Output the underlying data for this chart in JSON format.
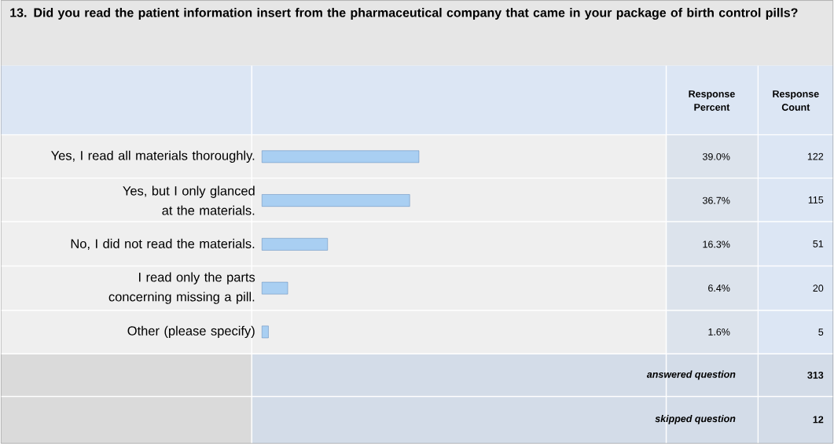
{
  "chart_data": {
    "type": "bar",
    "orientation": "horizontal",
    "title": "13. Did you read the patient information insert from the pharmaceutical company that came in your package of birth control pills?",
    "categories": [
      "Yes, I read all materials thoroughly.",
      "Yes, but I only glanced at the materials.",
      "No, I did not read the materials.",
      "I read only the parts concerning missing a pill.",
      "Other (please specify)"
    ],
    "values": [
      39.0,
      36.7,
      16.3,
      6.4,
      1.6
    ],
    "value_labels": [
      "39.0%",
      "36.7%",
      "16.3%",
      "6.4%",
      "1.6%"
    ],
    "color": "#a9cff2",
    "annotations": [
      "Response Percent",
      "Response Count",
      "122",
      "115",
      "51",
      "20",
      "5",
      "answered question",
      "313",
      "skipped question",
      "12"
    ]
  }
}
